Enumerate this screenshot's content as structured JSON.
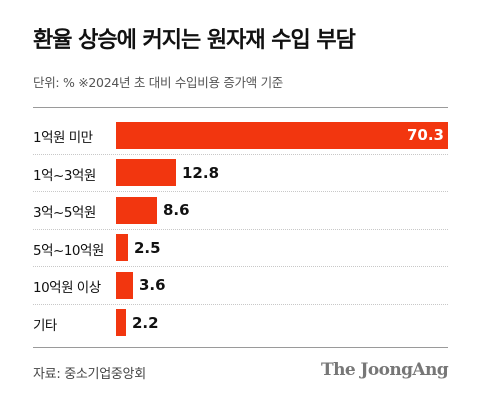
{
  "header": {
    "title": "환율 상승에 커지는 원자재 수입 부담",
    "subtitle": "단위: %   ※2024년 초 대비 수입비용 증가액 기준"
  },
  "footer": {
    "source": "자료: 중소기업중앙회",
    "logo": "The JoongAng"
  },
  "colors": {
    "bar": "#f2360f",
    "rule": "#9a9a9a"
  },
  "chart_data": {
    "type": "bar",
    "orientation": "horizontal",
    "title": "환율 상승에 커지는 원자재 수입 부담",
    "subtitle": "단위: %   ※2024년 초 대비 수입비용 증가액 기준",
    "categories": [
      "1억원 미만",
      "1억~3억원",
      "3억~5억원",
      "5억~10억원",
      "10억원 이상",
      "기타"
    ],
    "values": [
      70.3,
      12.8,
      8.6,
      2.5,
      3.6,
      2.2
    ],
    "value_labels": [
      "70.3",
      "12.8",
      "8.6",
      "2.5",
      "3.6",
      "2.2"
    ],
    "unit": "%",
    "xlim": [
      0,
      70.3
    ],
    "grid": false,
    "legend": "none"
  }
}
